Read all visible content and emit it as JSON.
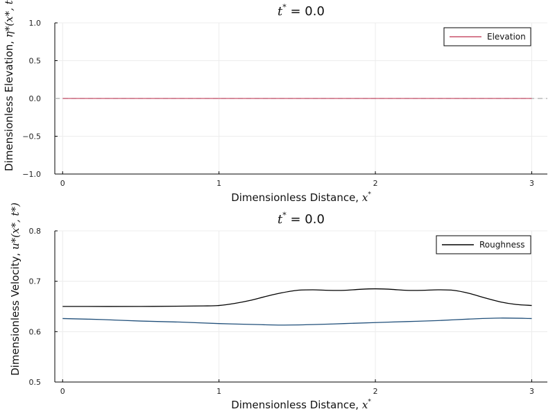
{
  "chart_data": [
    {
      "type": "line",
      "title": {
        "symbol": "t",
        "sup": "*",
        "text": " = 0.0"
      },
      "xlabel": {
        "text": "Dimensionless Distance, ",
        "symbol": "x",
        "sup": "*"
      },
      "ylabel": {
        "text": "Dimensionless Elevation, ",
        "math": "η*(x*, t*)"
      },
      "xlim": [
        -0.05,
        3.1
      ],
      "ylim": [
        -1.0,
        1.0
      ],
      "xticks": [
        "0",
        "1",
        "2",
        "3"
      ],
      "yticks": [
        "−1.0",
        "−0.5",
        "0.0",
        "0.5",
        "1.0"
      ],
      "ytick_values": [
        -1.0,
        -0.5,
        0.0,
        0.5,
        1.0
      ],
      "xtick_values": [
        0,
        1,
        2,
        3
      ],
      "grid": true,
      "legend": {
        "position": "top-right",
        "entries": [
          "Elevation"
        ]
      },
      "hline": {
        "y": 0.0,
        "style": "dashed",
        "color": "#aaaaaa"
      },
      "series": [
        {
          "name": "Elevation",
          "color": "#c8506a",
          "x": [
            0,
            3
          ],
          "y": [
            0.0,
            0.0
          ]
        }
      ]
    },
    {
      "type": "line",
      "title": {
        "symbol": "t",
        "sup": "*",
        "text": " = 0.0"
      },
      "xlabel": {
        "text": "Dimensionless Distance, ",
        "symbol": "x",
        "sup": "*"
      },
      "ylabel": {
        "text": "Dimensionless Velocity, ",
        "math": "u*(x*, t*)"
      },
      "xlim": [
        -0.05,
        3.1
      ],
      "ylim": [
        0.5,
        0.8
      ],
      "xticks": [
        "0",
        "1",
        "2",
        "3"
      ],
      "yticks": [
        "0.5",
        "0.6",
        "0.7",
        "0.8"
      ],
      "ytick_values": [
        0.5,
        0.6,
        0.7,
        0.8
      ],
      "xtick_values": [
        0,
        1,
        2,
        3
      ],
      "grid": true,
      "legend": {
        "position": "top-right",
        "entries": [
          "Roughness"
        ]
      },
      "series": [
        {
          "name": "Roughness",
          "color": "#000000",
          "x": [
            0,
            0.5,
            0.9,
            1.0,
            1.1,
            1.2,
            1.3,
            1.4,
            1.5,
            1.6,
            1.7,
            1.8,
            1.9,
            2.0,
            2.1,
            2.2,
            2.3,
            2.4,
            2.5,
            2.6,
            2.7,
            2.8,
            2.9,
            3.0
          ],
          "y": [
            0.65,
            0.65,
            0.651,
            0.652,
            0.656,
            0.662,
            0.67,
            0.677,
            0.682,
            0.683,
            0.682,
            0.682,
            0.684,
            0.685,
            0.684,
            0.682,
            0.682,
            0.683,
            0.682,
            0.676,
            0.667,
            0.659,
            0.654,
            0.652
          ]
        },
        {
          "color": "#1f4e79",
          "x": [
            0,
            0.25,
            0.5,
            0.75,
            1.0,
            1.25,
            1.4,
            1.6,
            1.8,
            2.0,
            2.2,
            2.4,
            2.6,
            2.8,
            3.0
          ],
          "y": [
            0.626,
            0.624,
            0.621,
            0.619,
            0.616,
            0.614,
            0.613,
            0.614,
            0.616,
            0.618,
            0.62,
            0.622,
            0.625,
            0.627,
            0.626
          ]
        }
      ]
    }
  ]
}
